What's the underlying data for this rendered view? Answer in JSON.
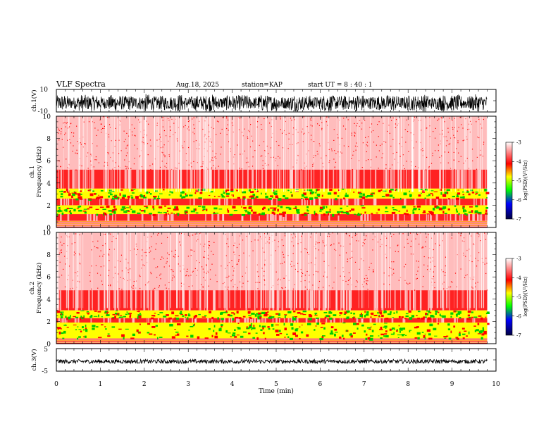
{
  "header": {
    "title": "VLF Spectra",
    "date": "Aug.18, 2025",
    "station": "station=KAP",
    "start": "start UT =  8 : 40 : 1"
  },
  "labels": {
    "ch1_wave": "ch.1(V)",
    "ch1_freq_a": "ch.1",
    "ch1_freq_b": "Frequency (kHz)",
    "ch2_freq_a": "ch.2",
    "ch2_freq_b": "Frequency (kHz)",
    "ch3_wave": "ch.3(V)",
    "xlabel": "Time (min)",
    "cbar1": "log(PSD)(V²/Hz)",
    "cbar2": "log(PSD)(V²/Hz)"
  },
  "colors": {
    "low": "#00008b",
    "blue": "#0000ff",
    "green": "#00cc00",
    "yellow": "#ffff00",
    "red": "#ff0000",
    "white": "#ffffff"
  },
  "chart_data": [
    {
      "type": "line",
      "name": "ch1-waveform",
      "ylabel": "ch.1(V)",
      "xlim": [
        0,
        10
      ],
      "ylim": [
        -10,
        10
      ],
      "yticks": [
        "10",
        "-10"
      ],
      "duration_min": 9.8,
      "amplitude_range": [
        -10,
        6
      ]
    },
    {
      "type": "heatmap",
      "name": "ch1-spectrogram",
      "ylabel": "Frequency (kHz)",
      "xlim": [
        0,
        10
      ],
      "ylim": [
        0,
        10
      ],
      "yticks": [
        "0",
        "2",
        "4",
        "6",
        "8",
        "10"
      ],
      "duration_min": 9.8,
      "bands": [
        {
          "f_low": 0.0,
          "f_high": 0.6,
          "level": "lines"
        },
        {
          "f_low": 0.6,
          "f_high": 1.2,
          "level": "red"
        },
        {
          "f_low": 1.2,
          "f_high": 2.0,
          "level": "green-yellow"
        },
        {
          "f_low": 2.0,
          "f_high": 2.6,
          "level": "red"
        },
        {
          "f_low": 2.6,
          "f_high": 3.5,
          "level": "green-yellow"
        },
        {
          "f_low": 3.5,
          "f_high": 5.2,
          "level": "red"
        },
        {
          "f_low": 5.2,
          "f_high": 10.0,
          "level": "speckle"
        }
      ]
    },
    {
      "type": "heatmap",
      "name": "ch2-spectrogram",
      "ylabel": "Frequency (kHz)",
      "xlim": [
        0,
        10
      ],
      "ylim": [
        0,
        10
      ],
      "yticks": [
        "0",
        "2",
        "4",
        "6",
        "8",
        "10"
      ],
      "duration_min": 9.8,
      "bands": [
        {
          "f_low": 0.0,
          "f_high": 0.5,
          "level": "lines"
        },
        {
          "f_low": 0.5,
          "f_high": 1.9,
          "level": "green-yellow"
        },
        {
          "f_low": 1.9,
          "f_high": 2.3,
          "level": "red"
        },
        {
          "f_low": 2.3,
          "f_high": 3.0,
          "level": "green-yellow"
        },
        {
          "f_low": 3.0,
          "f_high": 4.8,
          "level": "red"
        },
        {
          "f_low": 4.8,
          "f_high": 10.0,
          "level": "speckle"
        }
      ]
    },
    {
      "type": "line",
      "name": "ch3-waveform",
      "ylabel": "ch.3(V)",
      "xlim": [
        0,
        10
      ],
      "ylim": [
        -5,
        5
      ],
      "yticks": [
        "5",
        "-5"
      ],
      "duration_min": 9.8,
      "amplitude_range": [
        -1.6,
        0.2
      ]
    },
    {
      "type": "heatmap",
      "name": "colorbars",
      "title": "log(PSD)(V²/Hz)",
      "range": [
        -7,
        -3
      ],
      "ticks": [
        "-3",
        "-4",
        "-5",
        "-6",
        "-7"
      ]
    }
  ],
  "xaxis": {
    "label": "Time (min)",
    "ticks": [
      "0",
      "1",
      "2",
      "3",
      "4",
      "5",
      "6",
      "7",
      "8",
      "9",
      "10"
    ]
  }
}
